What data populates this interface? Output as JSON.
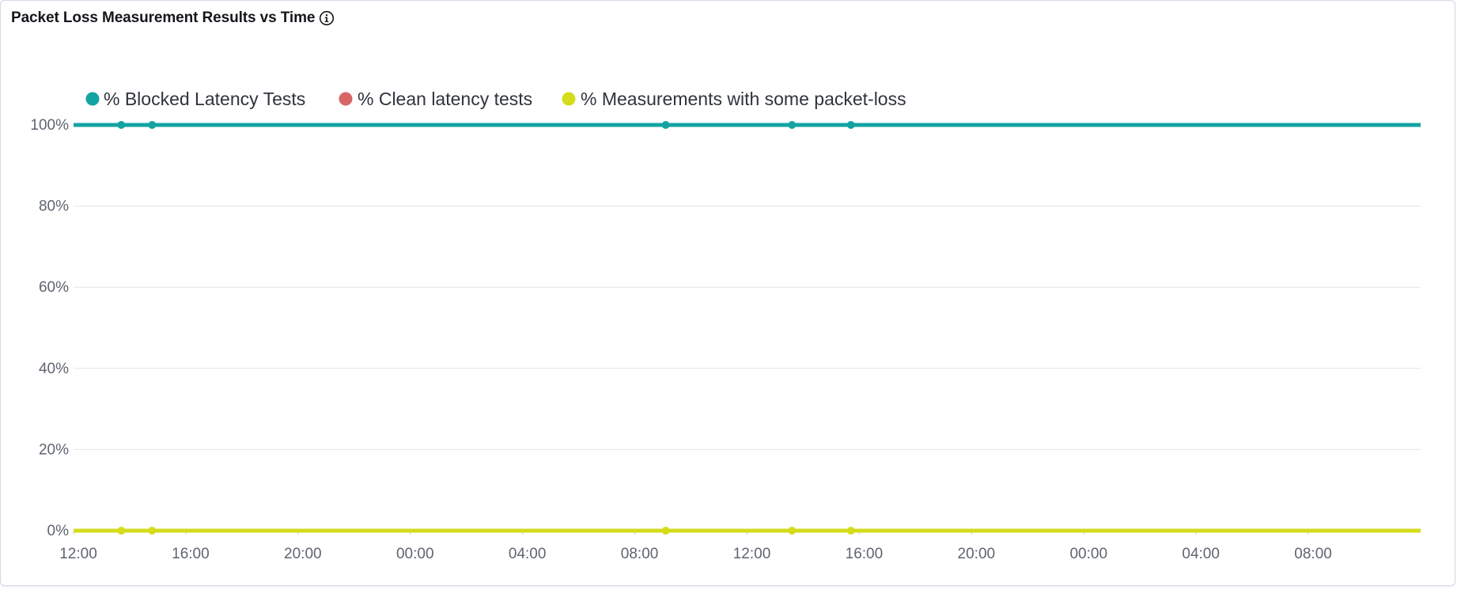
{
  "panel": {
    "title": "Packet Loss Measurement Results vs Time",
    "info_icon": "info-circle-icon"
  },
  "chart_data": {
    "type": "line",
    "title": "Packet Loss Measurement Results vs Time",
    "xlabel": "",
    "ylabel": "",
    "x_tick_labels": [
      "12:00",
      "16:00",
      "20:00",
      "00:00",
      "04:00",
      "08:00",
      "12:00",
      "16:00",
      "20:00",
      "00:00",
      "04:00",
      "08:00"
    ],
    "y_tick_labels": [
      "0%",
      "20%",
      "40%",
      "60%",
      "80%",
      "100%"
    ],
    "ylim": [
      0,
      100
    ],
    "xlim_hours": [
      0,
      48
    ],
    "grid": true,
    "legend_position": "top-left",
    "series": [
      {
        "name": "% Blocked Latency Tests",
        "color": "#14a3a3",
        "points": [
          {
            "x": 0,
            "y": 100
          },
          {
            "x": 1.7,
            "y": 100
          },
          {
            "x": 2.8,
            "y": 100
          },
          {
            "x": 21.1,
            "y": 100
          },
          {
            "x": 25.6,
            "y": 100
          },
          {
            "x": 27.7,
            "y": 100
          },
          {
            "x": 48,
            "y": 100
          }
        ]
      },
      {
        "name": "% Clean latency tests",
        "color": "#d96565",
        "points": [
          {
            "x": 0,
            "y": 0
          },
          {
            "x": 48,
            "y": 0
          }
        ]
      },
      {
        "name": "% Measurements with some packet-loss",
        "color": "#d4dc1c",
        "points": [
          {
            "x": 0,
            "y": 0
          },
          {
            "x": 1.7,
            "y": 0
          },
          {
            "x": 2.8,
            "y": 0
          },
          {
            "x": 21.1,
            "y": 0
          },
          {
            "x": 25.6,
            "y": 0
          },
          {
            "x": 27.7,
            "y": 0
          },
          {
            "x": 48,
            "y": 0
          }
        ]
      }
    ]
  }
}
